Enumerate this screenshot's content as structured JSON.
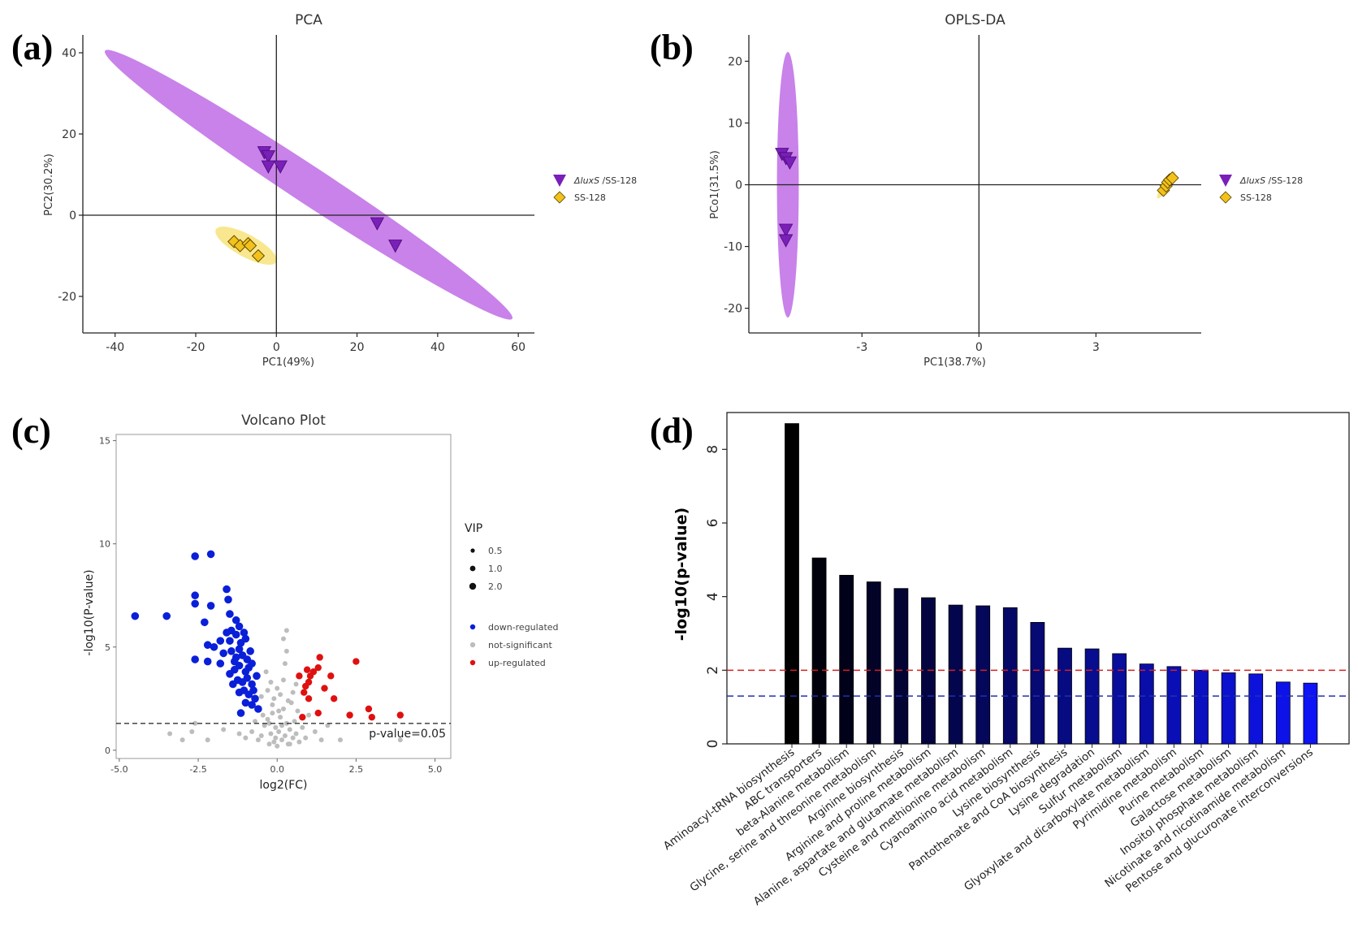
{
  "panel_letters": [
    "(a)",
    "(b)",
    "(c)",
    "(d)"
  ],
  "colors": {
    "purple_ellipse": "#c57be8",
    "yellow_ellipse": "#f7e37a",
    "purple_marker": "#7a1fb8",
    "yellow_marker": "#f2c21b",
    "down": "#0a1fd8",
    "ns": "#bdbdbd",
    "up": "#e01010",
    "red_line": "#d42020",
    "blue_line": "#2030b0"
  },
  "chart_data": [
    {
      "type": "scatter",
      "title": "PCA",
      "xlabel": "PC1(49%)",
      "ylabel": "PC2(30.2%)",
      "xlim": [
        -48,
        64
      ],
      "ylim": [
        -29,
        44
      ],
      "xticks": [
        -40,
        -20,
        0,
        20,
        40,
        60
      ],
      "yticks": [
        -20,
        0,
        20,
        40
      ],
      "ellipses": [
        {
          "group": "ΔluxS/SS-128",
          "center": [
            8,
            7.5
          ],
          "ends": [
            [
              -42.5,
              40.5
            ],
            [
              58.5,
              -25.5
            ]
          ],
          "half_width": 4.6
        },
        {
          "group": "SS-128",
          "center": [
            -7.5,
            -7.5
          ],
          "ends": [
            [
              -15,
              -3.5
            ],
            [
              0,
              -11.5
            ]
          ],
          "half_width": 2.8
        }
      ],
      "series": [
        {
          "name": "ΔluxS/SS-128",
          "marker": "triangle-down",
          "points": [
            [
              -3,
              15.5
            ],
            [
              -2,
              14.5
            ],
            [
              -2,
              12
            ],
            [
              1,
              12
            ],
            [
              25,
              -2
            ],
            [
              29.5,
              -7.5
            ]
          ]
        },
        {
          "name": "SS-128",
          "marker": "diamond",
          "points": [
            [
              -10.5,
              -6.5
            ],
            [
              -9,
              -7.5
            ],
            [
              -7,
              -7
            ],
            [
              -6.5,
              -7.5
            ],
            [
              -4.5,
              -10
            ]
          ]
        }
      ],
      "legend": [
        {
          "prefix": "ΔluxS",
          "suffix": " /SS-128"
        },
        {
          "prefix": "",
          "suffix": "SS-128"
        }
      ]
    },
    {
      "type": "scatter",
      "title": "OPLS-DA",
      "xlabel": "PC1(38.7%)",
      "ylabel": "PCo1(31.5%)",
      "xlim": [
        -5.9,
        5.7
      ],
      "ylim": [
        -24,
        24
      ],
      "xticks": [
        -3,
        0,
        3
      ],
      "yticks": [
        -20,
        -10,
        0,
        10,
        20
      ],
      "ellipses": [
        {
          "group": "ΔluxS/SS-128",
          "center": [
            -4.9,
            0
          ],
          "ends": [
            [
              -4.9,
              21.5
            ],
            [
              -4.9,
              -21.5
            ]
          ],
          "half_width": 0.28
        },
        {
          "group": "SS-128",
          "center": [
            4.8,
            0
          ],
          "ends": [
            [
              4.58,
              -2.2
            ],
            [
              5.02,
              2.2
            ]
          ],
          "half_width": 0.09
        }
      ],
      "series": [
        {
          "name": "ΔluxS/SS-128",
          "marker": "triangle-down",
          "points": [
            [
              -5.05,
              5
            ],
            [
              -4.95,
              4.3
            ],
            [
              -4.85,
              3.6
            ],
            [
              -4.95,
              -7.3
            ],
            [
              -4.95,
              -9
            ]
          ]
        },
        {
          "name": "SS-128",
          "marker": "diamond",
          "points": [
            [
              4.73,
              -0.9
            ],
            [
              4.8,
              -0.2
            ],
            [
              4.84,
              0.4
            ],
            [
              4.89,
              0.8
            ],
            [
              4.96,
              1.1
            ]
          ]
        }
      ],
      "legend": [
        {
          "prefix": "ΔluxS",
          "suffix": " /SS-128"
        },
        {
          "prefix": "",
          "suffix": "SS-128"
        }
      ]
    },
    {
      "type": "scatter",
      "title": "Volcano Plot",
      "xlabel": "log2(FC)",
      "ylabel": "-log10(P-value)",
      "xlim": [
        -5.1,
        5.5
      ],
      "ylim": [
        -0.4,
        15.3
      ],
      "xticks": [
        -5.0,
        -2.5,
        0.0,
        2.5,
        5.0
      ],
      "yticks": [
        0,
        5,
        10,
        15
      ],
      "threshold": {
        "y": 1.3,
        "label": "p-value=0.05"
      },
      "size_legend_title": "VIP",
      "size_legend": [
        "0.5",
        "1.0",
        "2.0"
      ],
      "color_legend": [
        "down-regulated",
        "not-significant",
        "up-regulated"
      ],
      "series": [
        {
          "name": "down-regulated",
          "points": [
            [
              -4.5,
              6.5
            ],
            [
              -3.5,
              6.5
            ],
            [
              -2.6,
              9.4
            ],
            [
              -2.1,
              9.5
            ],
            [
              -2.6,
              7.5
            ],
            [
              -2.6,
              7.1
            ],
            [
              -2.1,
              7.0
            ],
            [
              -1.6,
              7.8
            ],
            [
              -1.55,
              7.3
            ],
            [
              -2.3,
              6.2
            ],
            [
              -1.5,
              6.6
            ],
            [
              -1.3,
              6.3
            ],
            [
              -1.6,
              5.7
            ],
            [
              -1.45,
              5.8
            ],
            [
              -1.2,
              6.0
            ],
            [
              -1.8,
              5.3
            ],
            [
              -2.2,
              5.1
            ],
            [
              -2.0,
              5.0
            ],
            [
              -1.5,
              5.3
            ],
            [
              -1.3,
              5.6
            ],
            [
              -1.15,
              5.2
            ],
            [
              -1.0,
              5.4
            ],
            [
              -2.6,
              4.4
            ],
            [
              -2.2,
              4.3
            ],
            [
              -1.8,
              4.2
            ],
            [
              -1.45,
              4.8
            ],
            [
              -1.3,
              4.5
            ],
            [
              -1.2,
              4.9
            ],
            [
              -1.1,
              4.6
            ],
            [
              -0.95,
              4.4
            ],
            [
              -0.85,
              4.8
            ],
            [
              -1.5,
              3.7
            ],
            [
              -1.35,
              3.9
            ],
            [
              -1.2,
              4.1
            ],
            [
              -1.0,
              3.8
            ],
            [
              -0.9,
              4.0
            ],
            [
              -0.8,
              4.2
            ],
            [
              -1.4,
              3.2
            ],
            [
              -1.25,
              3.4
            ],
            [
              -1.1,
              3.3
            ],
            [
              -0.95,
              3.5
            ],
            [
              -0.8,
              3.2
            ],
            [
              -1.2,
              2.8
            ],
            [
              -1.05,
              2.9
            ],
            [
              -0.9,
              2.7
            ],
            [
              -0.75,
              2.9
            ],
            [
              -0.65,
              3.6
            ],
            [
              -1.0,
              2.3
            ],
            [
              -0.8,
              2.2
            ],
            [
              -1.15,
              1.8
            ],
            [
              -0.7,
              2.5
            ],
            [
              -0.6,
              2.0
            ],
            [
              -1.35,
              4.3
            ],
            [
              -1.05,
              5.7
            ],
            [
              -1.7,
              4.7
            ]
          ]
        },
        {
          "name": "not-significant",
          "points": [
            [
              -3.4,
              0.8
            ],
            [
              -3.0,
              0.5
            ],
            [
              -2.7,
              0.9
            ],
            [
              -2.6,
              1.3
            ],
            [
              -2.2,
              0.5
            ],
            [
              -1.7,
              1.0
            ],
            [
              -1.2,
              0.8
            ],
            [
              -1.0,
              0.6
            ],
            [
              -0.8,
              0.9
            ],
            [
              -0.6,
              0.5
            ],
            [
              -0.5,
              0.7
            ],
            [
              -0.4,
              1.2
            ],
            [
              -0.3,
              1.5
            ],
            [
              -0.25,
              0.3
            ],
            [
              -0.2,
              0.8
            ],
            [
              -0.15,
              1.8
            ],
            [
              -0.1,
              0.4
            ],
            [
              -0.05,
              1.1
            ],
            [
              0.0,
              0.2
            ],
            [
              0.05,
              0.9
            ],
            [
              0.1,
              1.6
            ],
            [
              0.15,
              0.5
            ],
            [
              0.2,
              2.0
            ],
            [
              0.25,
              0.7
            ],
            [
              0.3,
              1.3
            ],
            [
              0.35,
              0.3
            ],
            [
              0.4,
              1.0
            ],
            [
              0.45,
              2.3
            ],
            [
              0.5,
              0.6
            ],
            [
              0.55,
              1.4
            ],
            [
              0.6,
              0.8
            ],
            [
              0.65,
              1.9
            ],
            [
              0.7,
              0.4
            ],
            [
              0.8,
              1.1
            ],
            [
              0.9,
              0.6
            ],
            [
              1.0,
              1.7
            ],
            [
              1.2,
              0.9
            ],
            [
              1.4,
              0.5
            ],
            [
              1.6,
              1.2
            ],
            [
              -0.5,
              2.6
            ],
            [
              -0.3,
              2.9
            ],
            [
              -0.2,
              3.3
            ],
            [
              -0.1,
              2.5
            ],
            [
              0.0,
              3.0
            ],
            [
              0.1,
              2.7
            ],
            [
              0.2,
              3.4
            ],
            [
              0.25,
              4.2
            ],
            [
              0.3,
              4.8
            ],
            [
              0.2,
              5.4
            ],
            [
              0.3,
              5.8
            ],
            [
              -0.35,
              3.8
            ],
            [
              -0.15,
              2.2
            ],
            [
              0.05,
              1.9
            ],
            [
              0.35,
              2.4
            ],
            [
              -0.45,
              1.7
            ],
            [
              -0.7,
              1.4
            ],
            [
              0.6,
              3.2
            ],
            [
              0.5,
              2.8
            ],
            [
              2.0,
              0.5
            ],
            [
              3.9,
              0.5
            ],
            [
              -0.25,
              1.3
            ],
            [
              0.15,
              1.2
            ],
            [
              -0.05,
              0.6
            ],
            [
              0.4,
              0.3
            ]
          ]
        },
        {
          "name": "up-regulated",
          "points": [
            [
              0.7,
              3.6
            ],
            [
              0.85,
              2.8
            ],
            [
              0.9,
              3.1
            ],
            [
              1.0,
              3.3
            ],
            [
              1.05,
              3.6
            ],
            [
              1.15,
              3.8
            ],
            [
              1.3,
              4.0
            ],
            [
              1.35,
              4.5
            ],
            [
              1.5,
              3.0
            ],
            [
              1.7,
              3.6
            ],
            [
              1.8,
              2.5
            ],
            [
              1.3,
              1.8
            ],
            [
              1.0,
              2.5
            ],
            [
              0.8,
              1.6
            ],
            [
              2.5,
              4.3
            ],
            [
              2.3,
              1.7
            ],
            [
              2.9,
              2.0
            ],
            [
              3.0,
              1.6
            ],
            [
              3.9,
              1.7
            ],
            [
              0.95,
              3.9
            ]
          ]
        }
      ]
    },
    {
      "type": "bar",
      "ylabel": "-log10(p-value)",
      "ylim": [
        0,
        9
      ],
      "yticks": [
        0,
        2,
        4,
        6,
        8
      ],
      "reference_lines": [
        {
          "y": 2.0,
          "color": "red"
        },
        {
          "y": 1.3,
          "color": "blue"
        }
      ],
      "categories": [
        "Aminoacyl-tRNA biosynthesis",
        "ABC transporters",
        "beta-Alanine metabolism",
        "Glycine, serine and threonine metabolism",
        "Arginine biosynthesis",
        "Arginine and proline metabolism",
        "Alanine, aspartate and glutamate metabolism",
        "Cysteine and methionine metabolism",
        "Cyanoamino acid metabolism",
        "Lysine biosynthesis",
        "Pantothenate and CoA biosynthesis",
        "Lysine degradation",
        "Sulfur metabolism",
        "Glyoxylate and dicarboxylate metabolism",
        "Pyrimidine metabolism",
        "Purine metabolism",
        "Galactose metabolism",
        "Inositol phosphate metabolism",
        "Nicotinate and nicotinamide metabolism",
        "Pentose and glucuronate interconversions"
      ],
      "values": [
        8.7,
        5.05,
        4.58,
        4.4,
        4.22,
        3.97,
        3.77,
        3.75,
        3.7,
        3.3,
        2.6,
        2.58,
        2.45,
        2.17,
        2.1,
        2.0,
        1.93,
        1.9,
        1.68,
        1.65
      ]
    }
  ]
}
